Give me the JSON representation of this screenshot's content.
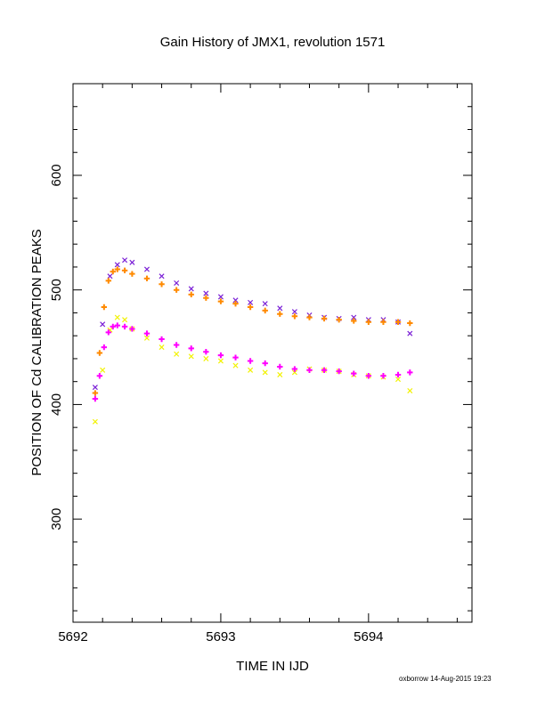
{
  "chart_data": {
    "type": "scatter",
    "title": "Gain History of JMX1, revolution 1571",
    "xlabel": "TIME IN IJD",
    "ylabel": "POSITION OF Cd CALIBRATION PEAKS",
    "xlim": [
      5692.0,
      5694.7
    ],
    "ylim": [
      210,
      680
    ],
    "x_ticks": [
      5692,
      5693,
      5694
    ],
    "y_ticks": [
      300,
      400,
      500,
      600
    ],
    "grid": false,
    "colors": {
      "purple_points": "#7a1fd6",
      "yellow_points": "#f2f200",
      "orange_fit": "#ff8a00",
      "magenta_fit": "#ff00ff"
    },
    "series": [
      {
        "marker": "x",
        "color": "#7a1fd6",
        "x": [
          5692.15,
          5692.2,
          5692.25,
          5692.3,
          5692.35,
          5692.4,
          5692.5,
          5692.6,
          5692.7,
          5692.8,
          5692.9,
          5693.0,
          5693.1,
          5693.2,
          5693.3,
          5693.4,
          5693.5,
          5693.6,
          5693.7,
          5693.8,
          5693.9,
          5694.0,
          5694.1,
          5694.2,
          5694.28
        ],
        "y": [
          415,
          470,
          512,
          522,
          526,
          524,
          518,
          512,
          506,
          501,
          497,
          494,
          491,
          489,
          488,
          484,
          481,
          478,
          476,
          475,
          476,
          474,
          474,
          472,
          462
        ]
      },
      {
        "marker": "x",
        "color": "#f2f200",
        "x": [
          5692.15,
          5692.2,
          5692.25,
          5692.3,
          5692.35,
          5692.4,
          5692.5,
          5692.6,
          5692.7,
          5692.8,
          5692.9,
          5693.0,
          5693.1,
          5693.2,
          5693.3,
          5693.4,
          5693.5,
          5693.6,
          5693.7,
          5693.8,
          5693.9,
          5694.0,
          5694.1,
          5694.2,
          5694.28
        ],
        "y": [
          385,
          430,
          465,
          476,
          474,
          466,
          458,
          450,
          444,
          442,
          440,
          438,
          434,
          430,
          428,
          426,
          428,
          431,
          430,
          429,
          426,
          425,
          424,
          422,
          412
        ]
      },
      {
        "marker": "+",
        "color": "#ff8a00",
        "x": [
          5692.15,
          5692.18,
          5692.21,
          5692.24,
          5692.27,
          5692.3,
          5692.35,
          5692.4,
          5692.5,
          5692.6,
          5692.7,
          5692.8,
          5692.9,
          5693.0,
          5693.1,
          5693.2,
          5693.3,
          5693.4,
          5693.5,
          5693.6,
          5693.7,
          5693.8,
          5693.9,
          5694.0,
          5694.1,
          5694.2,
          5694.28
        ],
        "y": [
          410,
          445,
          485,
          508,
          516,
          518,
          517,
          514,
          510,
          505,
          500,
          496,
          493,
          490,
          488,
          485,
          482,
          479,
          477,
          476,
          475,
          474,
          473,
          472,
          472,
          472,
          471
        ]
      },
      {
        "marker": "+",
        "color": "#ff00ff",
        "x": [
          5692.15,
          5692.18,
          5692.21,
          5692.24,
          5692.27,
          5692.3,
          5692.35,
          5692.4,
          5692.5,
          5692.6,
          5692.7,
          5692.8,
          5692.9,
          5693.0,
          5693.1,
          5693.2,
          5693.3,
          5693.4,
          5693.5,
          5693.6,
          5693.7,
          5693.8,
          5693.9,
          5694.0,
          5694.1,
          5694.2,
          5694.28
        ],
        "y": [
          405,
          425,
          450,
          463,
          468,
          469,
          468,
          466,
          462,
          457,
          452,
          449,
          446,
          443,
          441,
          438,
          436,
          433,
          431,
          430,
          430,
          429,
          427,
          425,
          425,
          426,
          428
        ]
      }
    ]
  },
  "footer": "oxborrow 14-Aug-2015 19:23"
}
